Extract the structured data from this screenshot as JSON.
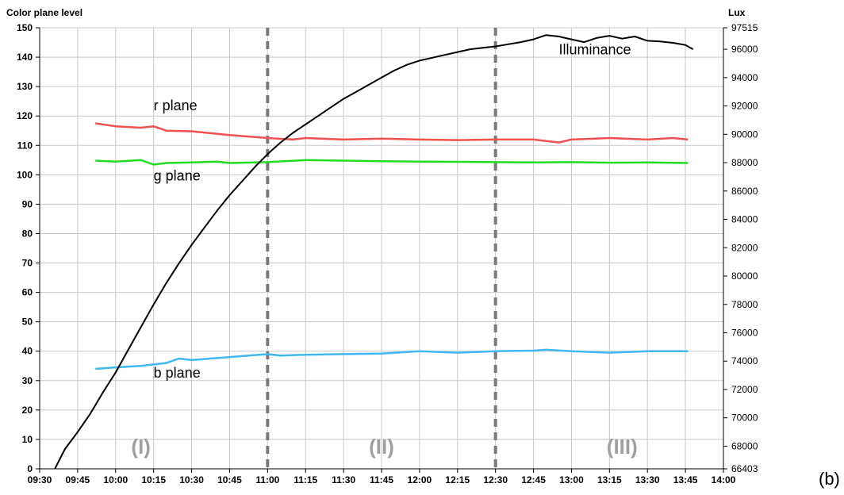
{
  "chart_data": {
    "type": "line",
    "panel_label": "(b)",
    "y_left": {
      "title": "Color plane level",
      "range": [
        0,
        150
      ],
      "ticks": [
        0,
        10,
        20,
        30,
        40,
        50,
        60,
        70,
        80,
        90,
        100,
        110,
        120,
        130,
        140,
        150
      ]
    },
    "y_right": {
      "title": "Lux",
      "range": [
        66403,
        97515
      ],
      "ticks": [
        66403,
        68000,
        70000,
        72000,
        74000,
        76000,
        78000,
        80000,
        82000,
        84000,
        86000,
        88000,
        90000,
        92000,
        94000,
        96000,
        97515
      ]
    },
    "x_axis": {
      "range": [
        "09:30",
        "14:00"
      ],
      "ticks": [
        "09:30",
        "09:45",
        "10:00",
        "10:15",
        "10:30",
        "10:45",
        "11:00",
        "11:15",
        "11:30",
        "11:45",
        "12:00",
        "12:15",
        "12:30",
        "12:45",
        "13:00",
        "13:15",
        "13:30",
        "13:45",
        "14:00"
      ]
    },
    "grid": true,
    "phase_dividers": [
      "11:00",
      "12:30"
    ],
    "phases": [
      {
        "label": "(I)",
        "at": "10:10"
      },
      {
        "label": "(II)",
        "at": "11:45"
      },
      {
        "label": "(III)",
        "at": "13:20"
      }
    ],
    "series": [
      {
        "name": "r plane",
        "axis": "left",
        "color": "#f05050",
        "label_at": {
          "x": "10:15",
          "y": 122
        },
        "x": [
          "09:52",
          "10:00",
          "10:10",
          "10:15",
          "10:20",
          "10:30",
          "10:45",
          "11:00",
          "11:10",
          "11:15",
          "11:30",
          "11:45",
          "12:00",
          "12:15",
          "12:30",
          "12:45",
          "12:55",
          "13:00",
          "13:15",
          "13:30",
          "13:40",
          "13:46"
        ],
        "y": [
          117.5,
          116.5,
          116,
          116.5,
          115,
          114.8,
          113.5,
          112.5,
          112,
          112.5,
          112,
          112.3,
          112,
          111.8,
          112,
          112,
          111,
          112,
          112.5,
          112,
          112.5,
          112
        ]
      },
      {
        "name": "g plane",
        "axis": "left",
        "color": "#22dd22",
        "label_at": {
          "x": "10:15",
          "y": 98
        },
        "x": [
          "09:52",
          "10:00",
          "10:10",
          "10:15",
          "10:20",
          "10:30",
          "10:40",
          "10:45",
          "11:00",
          "11:15",
          "11:30",
          "11:45",
          "12:00",
          "12:15",
          "12:30",
          "12:45",
          "13:00",
          "13:15",
          "13:30",
          "13:46"
        ],
        "y": [
          104.8,
          104.5,
          105,
          103.5,
          104,
          104.2,
          104.5,
          104,
          104.3,
          105,
          104.8,
          104.6,
          104.5,
          104.4,
          104.3,
          104.2,
          104.3,
          104.1,
          104.2,
          104
        ]
      },
      {
        "name": "b plane",
        "axis": "left",
        "color": "#40b8f0",
        "label_at": {
          "x": "10:15",
          "y": 31
        },
        "x": [
          "09:52",
          "10:00",
          "10:10",
          "10:15",
          "10:20",
          "10:25",
          "10:30",
          "10:45",
          "11:00",
          "11:05",
          "11:15",
          "11:30",
          "11:45",
          "12:00",
          "12:15",
          "12:30",
          "12:45",
          "12:50",
          "13:00",
          "13:15",
          "13:30",
          "13:46"
        ],
        "y": [
          34,
          34.5,
          35,
          35.5,
          36,
          37.5,
          37,
          38,
          39,
          38.5,
          38.8,
          39,
          39.2,
          40,
          39.5,
          40,
          40.2,
          40.5,
          40,
          39.5,
          40,
          40
        ]
      },
      {
        "name": "Illuminance",
        "axis": "right",
        "color": "#000000",
        "label_at": {
          "x": "12:55",
          "y": 95650
        },
        "x": [
          "09:36",
          "09:40",
          "09:45",
          "09:50",
          "09:55",
          "10:00",
          "10:05",
          "10:10",
          "10:15",
          "10:20",
          "10:25",
          "10:30",
          "10:35",
          "10:40",
          "10:45",
          "10:50",
          "10:55",
          "11:00",
          "11:05",
          "11:10",
          "11:15",
          "11:20",
          "11:25",
          "11:30",
          "11:35",
          "11:40",
          "11:45",
          "11:50",
          "11:55",
          "12:00",
          "12:05",
          "12:10",
          "12:15",
          "12:20",
          "12:25",
          "12:30",
          "12:35",
          "12:40",
          "12:45",
          "12:50",
          "12:55",
          "13:00",
          "13:05",
          "13:10",
          "13:15",
          "13:20",
          "13:25",
          "13:30",
          "13:35",
          "13:40",
          "13:45",
          "13:48"
        ],
        "y": [
          66403,
          67800,
          69000,
          70300,
          71800,
          73200,
          74800,
          76400,
          78000,
          79500,
          80900,
          82200,
          83400,
          84600,
          85700,
          86700,
          87700,
          88600,
          89400,
          90100,
          90700,
          91300,
          91900,
          92500,
          93000,
          93500,
          94000,
          94500,
          94900,
          95200,
          95400,
          95600,
          95800,
          96000,
          96100,
          96200,
          96350,
          96500,
          96700,
          97000,
          96900,
          96700,
          96500,
          96800,
          96950,
          96750,
          96900,
          96600,
          96550,
          96450,
          96300,
          96000
        ]
      }
    ]
  }
}
